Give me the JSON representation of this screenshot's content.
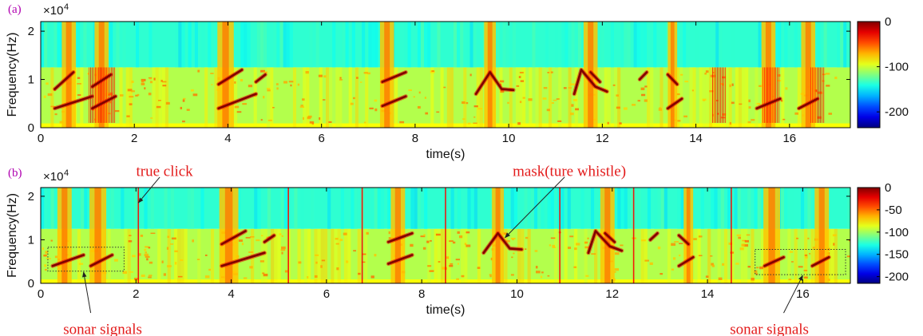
{
  "chart_data": [
    {
      "type": "heatmap",
      "panel_label": "(a)",
      "xlabel": "time(s)",
      "ylabel": "Frequency(Hz)",
      "y_multiplier": "×10",
      "y_multiplier_exp": "4",
      "xlim": [
        0,
        17.3
      ],
      "ylim": [
        0,
        22000
      ],
      "xticks": [
        0,
        2,
        4,
        6,
        8,
        10,
        12,
        14,
        16
      ],
      "yticks": [
        0,
        10000,
        20000
      ],
      "ytick_labels": [
        "0",
        "1",
        "2"
      ],
      "colorbar": {
        "min": -235,
        "max": 0,
        "ticks": [
          0,
          -100,
          -200
        ]
      },
      "clicks": [
        {
          "t": 0.6,
          "w": 0.3
        },
        {
          "t": 1.3,
          "w": 0.3
        },
        {
          "t": 3.95,
          "w": 0.35
        },
        {
          "t": 7.4,
          "w": 0.3
        },
        {
          "t": 9.6,
          "w": 0.25
        },
        {
          "t": 11.75,
          "w": 0.3
        },
        {
          "t": 13.5,
          "w": 0.2
        },
        {
          "t": 15.55,
          "w": 0.3
        },
        {
          "t": 16.4,
          "w": 0.3
        }
      ],
      "bursts": [
        {
          "t": 1.3,
          "w": 0.55
        },
        {
          "t": 14.5,
          "w": 0.3
        },
        {
          "t": 15.6,
          "w": 0.35
        },
        {
          "t": 16.6,
          "w": 0.3
        }
      ],
      "traces": [
        [
          [
            0.3,
            4000
          ],
          [
            1.1,
            6500
          ]
        ],
        [
          [
            0.3,
            8000
          ],
          [
            0.7,
            11500
          ]
        ],
        [
          [
            1.1,
            4000
          ],
          [
            1.6,
            6500
          ]
        ],
        [
          [
            1.1,
            8500
          ],
          [
            1.5,
            11000
          ]
        ],
        [
          [
            3.8,
            4000
          ],
          [
            4.6,
            7000
          ]
        ],
        [
          [
            3.8,
            9000
          ],
          [
            4.3,
            12000
          ]
        ],
        [
          [
            4.6,
            9500
          ],
          [
            4.8,
            11000
          ]
        ],
        [
          [
            7.3,
            4500
          ],
          [
            7.8,
            6500
          ]
        ],
        [
          [
            7.3,
            9500
          ],
          [
            7.8,
            11500
          ]
        ],
        [
          [
            9.3,
            7000
          ],
          [
            9.6,
            11500
          ],
          [
            9.85,
            8000
          ],
          [
            10.1,
            7800
          ]
        ],
        [
          [
            11.4,
            7000
          ],
          [
            11.55,
            12000
          ],
          [
            11.85,
            8500
          ],
          [
            12.1,
            7500
          ]
        ],
        [
          [
            11.75,
            11500
          ],
          [
            11.95,
            9500
          ]
        ],
        [
          [
            12.8,
            10000
          ],
          [
            12.95,
            11500
          ]
        ],
        [
          [
            13.4,
            4000
          ],
          [
            13.7,
            6000
          ]
        ],
        [
          [
            13.4,
            11000
          ],
          [
            13.6,
            9000
          ]
        ],
        [
          [
            15.3,
            4000
          ],
          [
            15.8,
            6000
          ]
        ],
        [
          [
            16.2,
            4000
          ],
          [
            16.6,
            6000
          ]
        ]
      ]
    },
    {
      "type": "heatmap",
      "panel_label": "(b)",
      "xlabel": "time(s)",
      "ylabel": "Frequency(Hz)",
      "y_multiplier": "×10",
      "y_multiplier_exp": "4",
      "xlim": [
        0,
        17.0
      ],
      "ylim": [
        0,
        22000
      ],
      "xticks": [
        0,
        2,
        4,
        6,
        8,
        10,
        12,
        14,
        16
      ],
      "yticks": [
        0,
        10000,
        20000
      ],
      "ytick_labels": [
        "0",
        "1",
        "2"
      ],
      "colorbar": {
        "min": -215,
        "max": 0,
        "ticks": [
          0,
          -50,
          -100,
          -150,
          -200
        ]
      },
      "clicks": [
        {
          "t": 0.5,
          "w": 0.3
        },
        {
          "t": 1.2,
          "w": 0.35
        },
        {
          "t": 3.95,
          "w": 0.4
        },
        {
          "t": 7.5,
          "w": 0.3
        },
        {
          "t": 9.6,
          "w": 0.25
        },
        {
          "t": 11.9,
          "w": 0.3
        },
        {
          "t": 13.6,
          "w": 0.2
        },
        {
          "t": 15.35,
          "w": 0.35
        },
        {
          "t": 16.4,
          "w": 0.3
        }
      ],
      "click_lines": [
        2.05,
        5.2,
        6.75,
        8.5,
        10.9,
        12.45,
        14.5
      ],
      "traces": [
        [
          [
            0.25,
            4000
          ],
          [
            0.9,
            6500
          ]
        ],
        [
          [
            1.05,
            4000
          ],
          [
            1.5,
            6500
          ]
        ],
        [
          [
            3.8,
            4000
          ],
          [
            4.7,
            7000
          ]
        ],
        [
          [
            3.8,
            9000
          ],
          [
            4.3,
            12000
          ]
        ],
        [
          [
            4.7,
            9500
          ],
          [
            4.9,
            11000
          ]
        ],
        [
          [
            7.3,
            4500
          ],
          [
            7.8,
            6500
          ]
        ],
        [
          [
            7.3,
            9500
          ],
          [
            7.8,
            11500
          ]
        ],
        [
          [
            9.3,
            7000
          ],
          [
            9.6,
            11500
          ],
          [
            9.85,
            8000
          ],
          [
            10.1,
            7800
          ]
        ],
        [
          [
            11.5,
            7000
          ],
          [
            11.65,
            12000
          ],
          [
            11.95,
            8500
          ],
          [
            12.2,
            7500
          ]
        ],
        [
          [
            11.85,
            11500
          ],
          [
            12.05,
            9500
          ]
        ],
        [
          [
            12.8,
            10000
          ],
          [
            12.95,
            11500
          ]
        ],
        [
          [
            13.4,
            4000
          ],
          [
            13.7,
            6000
          ]
        ],
        [
          [
            13.4,
            11000
          ],
          [
            13.6,
            9000
          ]
        ],
        [
          [
            15.2,
            4000
          ],
          [
            15.6,
            6000
          ]
        ],
        [
          [
            16.2,
            4000
          ],
          [
            16.55,
            6000
          ]
        ]
      ],
      "boxes": [
        {
          "t0": 0.15,
          "t1": 1.75,
          "f0": 2800,
          "f1": 8300
        },
        {
          "t0": 15.0,
          "t1": 16.9,
          "f0": 2000,
          "f1": 7800
        }
      ],
      "annotations": [
        {
          "text": "true click",
          "label_t": 2.6,
          "label_f": 25800,
          "tip_t": 2.05,
          "tip_f": 18500,
          "arrow_from_t": 2.5,
          "arrow_from_f": 24400
        },
        {
          "text": "mask(ture whistle)",
          "label_t": 11.1,
          "label_f": 25800,
          "tip_t": 9.75,
          "tip_f": 10500,
          "arrow_from_t": 11.0,
          "arrow_from_f": 24400
        },
        {
          "text": "sonar signals",
          "label_t": 1.3,
          "label_f": -10500,
          "tip_t": 0.9,
          "tip_f": 2600,
          "arrow_from_t": 1.05,
          "arrow_from_f": -6800
        },
        {
          "text": "sonar signals",
          "label_t": 15.3,
          "label_f": -10500,
          "tip_t": 16.0,
          "tip_f": 1800,
          "arrow_from_t": 15.6,
          "arrow_from_f": -6800
        }
      ]
    }
  ]
}
